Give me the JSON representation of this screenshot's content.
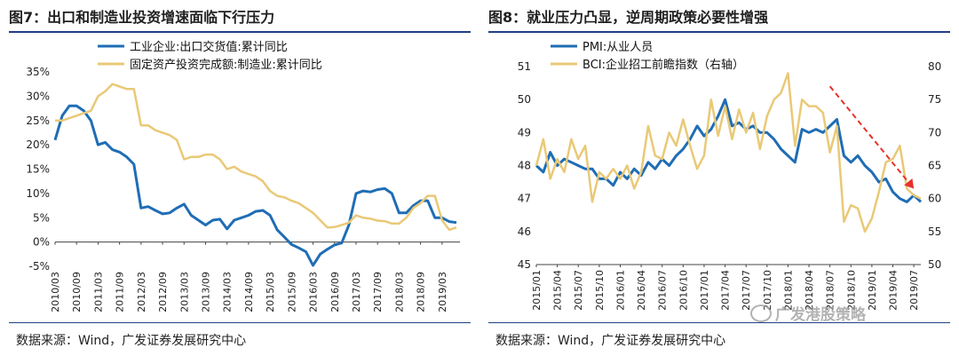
{
  "left": {
    "title": "图7：出口和制造业投资增速面临下行压力",
    "source": "数据来源：Wind，广发证券发展研究中心"
  },
  "right": {
    "title": "图8：就业压力凸显，逆周期政策必要性增强",
    "source": "数据来源：Wind，广发证券发展研究中心"
  },
  "watermark": "广发港股策略",
  "colors": {
    "blue": "#1f6db5",
    "yellow": "#e9c977",
    "red": "#e8312a",
    "rule": "#1f3f86"
  },
  "chart_data": [
    {
      "type": "line",
      "title": "图7：出口和制造业投资增速面临下行压力",
      "xlabel": "",
      "ylabel": "",
      "ylim": [
        -0.05,
        0.35
      ],
      "yticks": [
        "-5%",
        "0%",
        "5%",
        "10%",
        "15%",
        "20%",
        "25%",
        "30%",
        "35%"
      ],
      "x_tick_labels": [
        "2010/03",
        "2010/09",
        "2011/03",
        "2011/09",
        "2012/03",
        "2012/09",
        "2013/03",
        "2013/09",
        "2014/03",
        "2014/09",
        "2015/03",
        "2015/09",
        "2016/03",
        "2016/09",
        "2017/03",
        "2017/09",
        "2018/03",
        "2018/09",
        "2019/03"
      ],
      "legend_position": "top-left",
      "series": [
        {
          "name": "工业企业:出口交货值:累计同比",
          "color": "#1f6db5",
          "points": [
            [
              "2010/03",
              0.21
            ],
            [
              "2010/05",
              0.26
            ],
            [
              "2010/07",
              0.28
            ],
            [
              "2010/09",
              0.28
            ],
            [
              "2010/11",
              0.27
            ],
            [
              "2011/01",
              0.25
            ],
            [
              "2011/03",
              0.2
            ],
            [
              "2011/05",
              0.205
            ],
            [
              "2011/07",
              0.19
            ],
            [
              "2011/09",
              0.185
            ],
            [
              "2011/11",
              0.175
            ],
            [
              "2012/01",
              0.16
            ],
            [
              "2012/03",
              0.07
            ],
            [
              "2012/05",
              0.073
            ],
            [
              "2012/07",
              0.065
            ],
            [
              "2012/09",
              0.058
            ],
            [
              "2012/11",
              0.06
            ],
            [
              "2013/01",
              0.07
            ],
            [
              "2013/03",
              0.078
            ],
            [
              "2013/05",
              0.055
            ],
            [
              "2013/07",
              0.045
            ],
            [
              "2013/09",
              0.035
            ],
            [
              "2013/11",
              0.045
            ],
            [
              "2014/01",
              0.047
            ],
            [
              "2014/03",
              0.027
            ],
            [
              "2014/05",
              0.045
            ],
            [
              "2014/07",
              0.05
            ],
            [
              "2014/09",
              0.055
            ],
            [
              "2014/11",
              0.063
            ],
            [
              "2015/01",
              0.065
            ],
            [
              "2015/03",
              0.055
            ],
            [
              "2015/05",
              0.025
            ],
            [
              "2015/07",
              0.01
            ],
            [
              "2015/09",
              -0.005
            ],
            [
              "2015/11",
              -0.012
            ],
            [
              "2016/01",
              -0.02
            ],
            [
              "2016/03",
              -0.048
            ],
            [
              "2016/05",
              -0.025
            ],
            [
              "2016/07",
              -0.015
            ],
            [
              "2016/09",
              -0.006
            ],
            [
              "2016/11",
              -0.002
            ],
            [
              "2017/01",
              0.035
            ],
            [
              "2017/03",
              0.1
            ],
            [
              "2017/05",
              0.105
            ],
            [
              "2017/07",
              0.103
            ],
            [
              "2017/09",
              0.108
            ],
            [
              "2017/11",
              0.11
            ],
            [
              "2018/01",
              0.1
            ],
            [
              "2018/03",
              0.06
            ],
            [
              "2018/05",
              0.06
            ],
            [
              "2018/07",
              0.075
            ],
            [
              "2018/09",
              0.085
            ],
            [
              "2018/11",
              0.085
            ],
            [
              "2019/01",
              0.05
            ],
            [
              "2019/03",
              0.05
            ],
            [
              "2019/05",
              0.042
            ],
            [
              "2019/07",
              0.04
            ]
          ]
        },
        {
          "name": "固定资产投资完成额:制造业:累计同比",
          "color": "#e9c977",
          "points": [
            [
              "2010/03",
              0.25
            ],
            [
              "2010/05",
              0.25
            ],
            [
              "2010/07",
              0.255
            ],
            [
              "2010/09",
              0.26
            ],
            [
              "2010/11",
              0.265
            ],
            [
              "2011/01",
              0.27
            ],
            [
              "2011/03",
              0.3
            ],
            [
              "2011/05",
              0.31
            ],
            [
              "2011/07",
              0.325
            ],
            [
              "2011/09",
              0.32
            ],
            [
              "2011/11",
              0.315
            ],
            [
              "2012/01",
              0.315
            ],
            [
              "2012/03",
              0.24
            ],
            [
              "2012/05",
              0.24
            ],
            [
              "2012/07",
              0.23
            ],
            [
              "2012/09",
              0.225
            ],
            [
              "2012/11",
              0.22
            ],
            [
              "2013/01",
              0.21
            ],
            [
              "2013/03",
              0.17
            ],
            [
              "2013/05",
              0.175
            ],
            [
              "2013/07",
              0.175
            ],
            [
              "2013/09",
              0.18
            ],
            [
              "2013/11",
              0.18
            ],
            [
              "2014/01",
              0.17
            ],
            [
              "2014/03",
              0.15
            ],
            [
              "2014/05",
              0.155
            ],
            [
              "2014/07",
              0.145
            ],
            [
              "2014/09",
              0.14
            ],
            [
              "2014/11",
              0.135
            ],
            [
              "2015/01",
              0.125
            ],
            [
              "2015/03",
              0.105
            ],
            [
              "2015/05",
              0.095
            ],
            [
              "2015/07",
              0.092
            ],
            [
              "2015/09",
              0.085
            ],
            [
              "2015/11",
              0.08
            ],
            [
              "2016/01",
              0.07
            ],
            [
              "2016/03",
              0.06
            ],
            [
              "2016/05",
              0.045
            ],
            [
              "2016/07",
              0.03
            ],
            [
              "2016/09",
              0.031
            ],
            [
              "2016/11",
              0.035
            ],
            [
              "2017/01",
              0.04
            ],
            [
              "2017/03",
              0.055
            ],
            [
              "2017/05",
              0.05
            ],
            [
              "2017/07",
              0.048
            ],
            [
              "2017/09",
              0.044
            ],
            [
              "2017/11",
              0.043
            ],
            [
              "2018/01",
              0.038
            ],
            [
              "2018/03",
              0.038
            ],
            [
              "2018/05",
              0.05
            ],
            [
              "2018/07",
              0.07
            ],
            [
              "2018/09",
              0.08
            ],
            [
              "2018/11",
              0.095
            ],
            [
              "2019/01",
              0.095
            ],
            [
              "2019/03",
              0.045
            ],
            [
              "2019/05",
              0.025
            ],
            [
              "2019/07",
              0.03
            ]
          ]
        }
      ]
    },
    {
      "type": "line",
      "title": "图8：就业压力凸显，逆周期政策必要性增强",
      "xlabel": "",
      "ylabel": "",
      "ylim": [
        45,
        51
      ],
      "y2lim": [
        50,
        80
      ],
      "yticks": [
        "45",
        "46",
        "47",
        "48",
        "49",
        "50",
        "51"
      ],
      "y2ticks": [
        "50",
        "55",
        "60",
        "65",
        "70",
        "75",
        "80"
      ],
      "x_tick_labels": [
        "2015/01",
        "2015/04",
        "2015/07",
        "2015/10",
        "2016/01",
        "2016/04",
        "2016/07",
        "2016/10",
        "2017/01",
        "2017/04",
        "2017/07",
        "2017/10",
        "2018/01",
        "2018/04",
        "2018/07",
        "2018/10",
        "2019/01",
        "2019/04",
        "2019/07"
      ],
      "legend_position": "top-left",
      "annotations": [
        {
          "type": "arrow",
          "from": [
            "2018/07",
            77.0
          ],
          "to": [
            "2019/07",
            61.5
          ],
          "axis": "right",
          "style": "dashed",
          "color": "#e8312a"
        }
      ],
      "series": [
        {
          "name": "PMI:从业人员",
          "axis": "left",
          "color": "#1f6db5",
          "points": [
            [
              "2015/01",
              48.0
            ],
            [
              "2015/02",
              47.8
            ],
            [
              "2015/03",
              48.4
            ],
            [
              "2015/04",
              48.0
            ],
            [
              "2015/05",
              48.2
            ],
            [
              "2015/06",
              48.1
            ],
            [
              "2015/07",
              48.0
            ],
            [
              "2015/08",
              47.9
            ],
            [
              "2015/09",
              47.9
            ],
            [
              "2015/10",
              47.6
            ],
            [
              "2015/11",
              47.6
            ],
            [
              "2015/12",
              47.4
            ],
            [
              "2016/01",
              47.8
            ],
            [
              "2016/02",
              47.6
            ],
            [
              "2016/03",
              47.9
            ],
            [
              "2016/04",
              47.7
            ],
            [
              "2016/05",
              48.1
            ],
            [
              "2016/06",
              47.9
            ],
            [
              "2016/07",
              48.2
            ],
            [
              "2016/08",
              48.0
            ],
            [
              "2016/09",
              48.3
            ],
            [
              "2016/10",
              48.5
            ],
            [
              "2016/11",
              48.8
            ],
            [
              "2016/12",
              49.2
            ],
            [
              "2017/01",
              48.9
            ],
            [
              "2017/02",
              49.1
            ],
            [
              "2017/03",
              49.5
            ],
            [
              "2017/04",
              50.0
            ],
            [
              "2017/05",
              49.2
            ],
            [
              "2017/06",
              49.3
            ],
            [
              "2017/07",
              49.1
            ],
            [
              "2017/08",
              49.2
            ],
            [
              "2017/09",
              49.0
            ],
            [
              "2017/10",
              49.0
            ],
            [
              "2017/11",
              48.8
            ],
            [
              "2017/12",
              48.5
            ],
            [
              "2018/01",
              48.3
            ],
            [
              "2018/02",
              48.1
            ],
            [
              "2018/03",
              49.1
            ],
            [
              "2018/04",
              49.0
            ],
            [
              "2018/05",
              49.1
            ],
            [
              "2018/06",
              49.0
            ],
            [
              "2018/07",
              49.2
            ],
            [
              "2018/08",
              49.4
            ],
            [
              "2018/09",
              48.3
            ],
            [
              "2018/10",
              48.1
            ],
            [
              "2018/11",
              48.3
            ],
            [
              "2018/12",
              48.0
            ],
            [
              "2019/01",
              47.8
            ],
            [
              "2019/02",
              47.5
            ],
            [
              "2019/03",
              47.6
            ],
            [
              "2019/04",
              47.2
            ],
            [
              "2019/05",
              47.0
            ],
            [
              "2019/06",
              46.9
            ],
            [
              "2019/07",
              47.1
            ],
            [
              "2019/08",
              46.9
            ]
          ]
        },
        {
          "name": "BCI:企业招工前瞻指数（右轴）",
          "axis": "right",
          "color": "#e9c977",
          "points": [
            [
              "2015/01",
              65.0
            ],
            [
              "2015/02",
              69.0
            ],
            [
              "2015/03",
              63.0
            ],
            [
              "2015/04",
              66.0
            ],
            [
              "2015/05",
              64.0
            ],
            [
              "2015/06",
              69.0
            ],
            [
              "2015/07",
              66.0
            ],
            [
              "2015/08",
              68.0
            ],
            [
              "2015/09",
              59.5
            ],
            [
              "2015/10",
              64.0
            ],
            [
              "2015/11",
              63.0
            ],
            [
              "2015/12",
              64.5
            ],
            [
              "2016/01",
              63.0
            ],
            [
              "2016/02",
              65.0
            ],
            [
              "2016/03",
              61.5
            ],
            [
              "2016/04",
              64.0
            ],
            [
              "2016/05",
              71.0
            ],
            [
              "2016/06",
              66.5
            ],
            [
              "2016/07",
              66.0
            ],
            [
              "2016/08",
              70.0
            ],
            [
              "2016/09",
              68.0
            ],
            [
              "2016/10",
              72.0
            ],
            [
              "2016/11",
              68.0
            ],
            [
              "2016/12",
              64.5
            ],
            [
              "2017/01",
              66.5
            ],
            [
              "2017/02",
              75.0
            ],
            [
              "2017/03",
              69.5
            ],
            [
              "2017/04",
              74.0
            ],
            [
              "2017/05",
              69.0
            ],
            [
              "2017/06",
              73.5
            ],
            [
              "2017/07",
              70.0
            ],
            [
              "2017/08",
              73.0
            ],
            [
              "2017/09",
              67.5
            ],
            [
              "2017/10",
              72.5
            ],
            [
              "2017/11",
              75.0
            ],
            [
              "2017/12",
              76.0
            ],
            [
              "2018/01",
              79.0
            ],
            [
              "2018/02",
              68.0
            ],
            [
              "2018/03",
              75.0
            ],
            [
              "2018/04",
              74.0
            ],
            [
              "2018/05",
              74.0
            ],
            [
              "2018/06",
              73.0
            ],
            [
              "2018/07",
              67.0
            ],
            [
              "2018/08",
              71.0
            ],
            [
              "2018/09",
              56.5
            ],
            [
              "2018/10",
              59.0
            ],
            [
              "2018/11",
              58.5
            ],
            [
              "2018/12",
              55.0
            ],
            [
              "2019/01",
              57.0
            ],
            [
              "2019/02",
              61.0
            ],
            [
              "2019/03",
              65.5
            ],
            [
              "2019/04",
              66.0
            ],
            [
              "2019/05",
              68.0
            ],
            [
              "2019/06",
              61.5
            ],
            [
              "2019/07",
              60.5
            ],
            [
              "2019/08",
              60.0
            ]
          ]
        }
      ]
    }
  ]
}
